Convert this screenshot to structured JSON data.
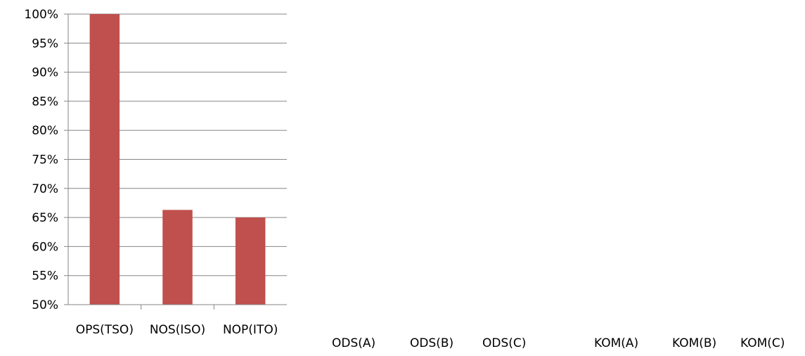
{
  "chart_data": {
    "type": "bar",
    "categories": [
      "OPS(TSO)",
      "NOS(ISO)",
      "NOP(ITO)"
    ],
    "series": [
      {
        "values": [
          100,
          66.3,
          65
        ],
        "color": "#c0504d"
      }
    ],
    "ylim": [
      50,
      100
    ],
    "yticks": [
      "100%",
      "95%",
      "90%",
      "85%",
      "80%",
      "75%",
      "70%",
      "65%",
      "60%",
      "55%",
      "50%"
    ],
    "grid": true,
    "legend": "none"
  },
  "extra_labels": {
    "ods": [
      "ODS(A)",
      "ODS(B)",
      "ODS(C)"
    ],
    "kom": [
      "KOM(A)",
      "KOM(B)",
      "KOM(C)"
    ]
  }
}
